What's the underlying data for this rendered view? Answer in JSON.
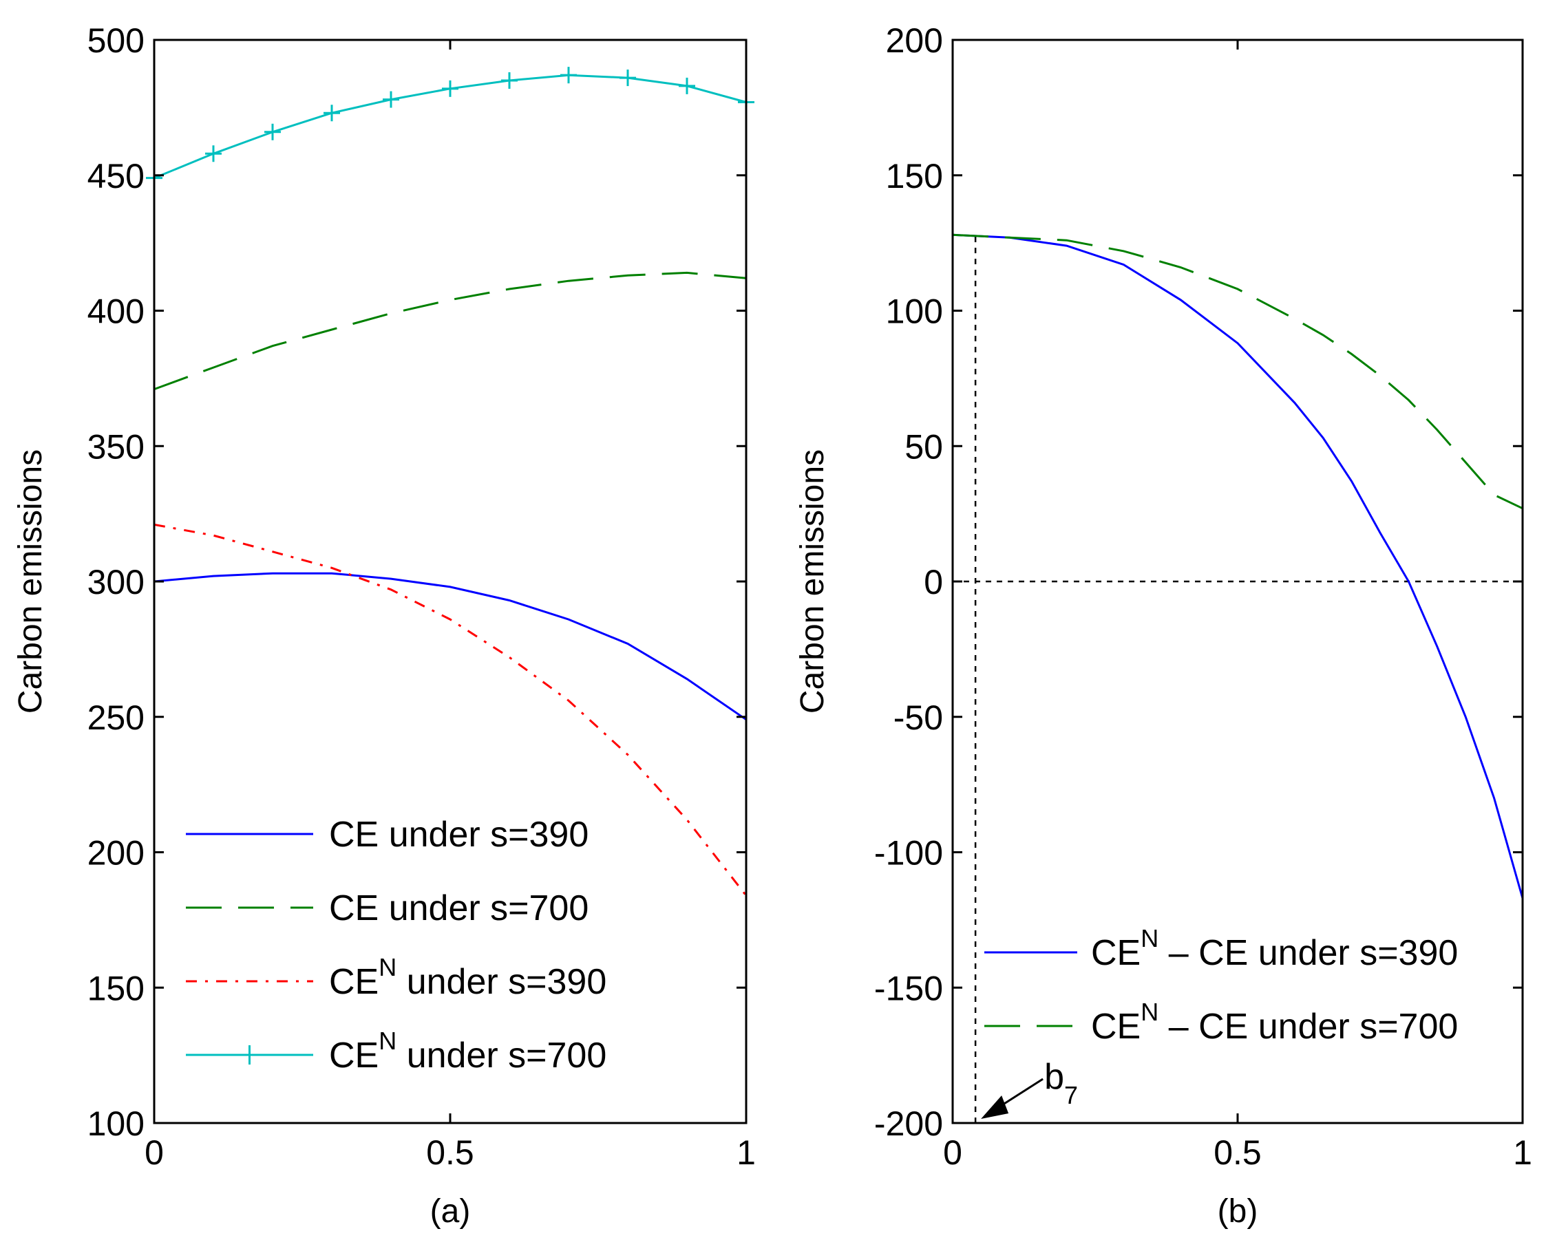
{
  "chart_data": [
    {
      "type": "line",
      "panel_label": "(a)",
      "xlabel": "",
      "ylabel": "Carbon emissions",
      "xlim": [
        0,
        1
      ],
      "ylim": [
        100,
        500
      ],
      "xticks": [
        0,
        0.5,
        1
      ],
      "xtick_labels": [
        "0",
        "0.5",
        "1"
      ],
      "yticks": [
        100,
        150,
        200,
        250,
        300,
        350,
        400,
        450,
        500
      ],
      "ytick_labels": [
        "100",
        "150",
        "200",
        "250",
        "300",
        "350",
        "400",
        "450",
        "500"
      ],
      "legend_position": "bottom-left",
      "x": [
        0,
        0.1,
        0.2,
        0.3,
        0.4,
        0.5,
        0.6,
        0.7,
        0.8,
        0.9,
        1.0
      ],
      "series": [
        {
          "label_main": "CE",
          "label_sup": "",
          "label_rest": " under s=390",
          "color": "#0000ff",
          "dash": "",
          "values": [
            300,
            302,
            303,
            303,
            301,
            298,
            293,
            286,
            277,
            264,
            249
          ]
        },
        {
          "label_main": "CE",
          "label_sup": "",
          "label_rest": " under s=700",
          "color": "#008000",
          "dash": "52 24",
          "values": [
            371,
            379,
            387,
            393,
            399,
            404,
            408,
            411,
            413,
            414,
            412
          ]
        },
        {
          "label_main": "CE",
          "label_sup": "N",
          "label_rest": " under s=390",
          "color": "#ff0000",
          "dash": "16 12 4 12",
          "values": [
            321,
            317,
            311,
            305,
            297,
            286,
            272,
            256,
            236,
            212,
            184
          ]
        },
        {
          "label_main": "CE",
          "label_sup": "N",
          "label_rest": " under s=700",
          "color": "#00bfbf",
          "dash": "",
          "marker": "plus",
          "values": [
            449,
            458,
            466,
            473,
            478,
            482,
            485,
            487,
            486,
            483,
            477
          ]
        }
      ]
    },
    {
      "type": "line",
      "panel_label": "(b)",
      "xlabel": "",
      "ylabel": "Carbon emissions",
      "xlim": [
        0,
        1
      ],
      "ylim": [
        -200,
        200
      ],
      "xticks": [
        0,
        0.5,
        1
      ],
      "xtick_labels": [
        "0",
        "0.5",
        "1"
      ],
      "yticks": [
        -200,
        -150,
        -100,
        -50,
        0,
        50,
        100,
        150,
        200
      ],
      "ytick_labels": [
        "-200",
        "-150",
        "-100",
        "-50",
        "0",
        "50",
        "100",
        "150",
        "200"
      ],
      "legend_position": "bottom-right",
      "x": [
        0,
        0.1,
        0.2,
        0.3,
        0.4,
        0.5,
        0.6,
        0.65,
        0.7,
        0.75,
        0.8,
        0.85,
        0.9,
        0.95,
        1.0
      ],
      "series": [
        {
          "label_main": "CE",
          "label_sup": "N",
          "label_rest": " – CE under s=390",
          "color": "#0000ff",
          "dash": "",
          "values": [
            128,
            127,
            124,
            117,
            104,
            88,
            66,
            53,
            37,
            18,
            0,
            -24,
            -50,
            -80,
            -117
          ]
        },
        {
          "label_main": "CE",
          "label_sup": "N",
          "label_rest": " – CE under s=700",
          "color": "#008000",
          "dash": "52 24",
          "values": [
            128,
            127,
            126,
            122,
            116,
            108,
            97,
            91,
            84,
            76,
            67,
            56,
            44,
            32,
            27
          ]
        }
      ],
      "reference_lines": {
        "y": 0,
        "x": 0.04,
        "x_top": 128
      },
      "annotation": {
        "text": "b",
        "sub": "7",
        "x": 0.04,
        "y": -200
      }
    }
  ]
}
